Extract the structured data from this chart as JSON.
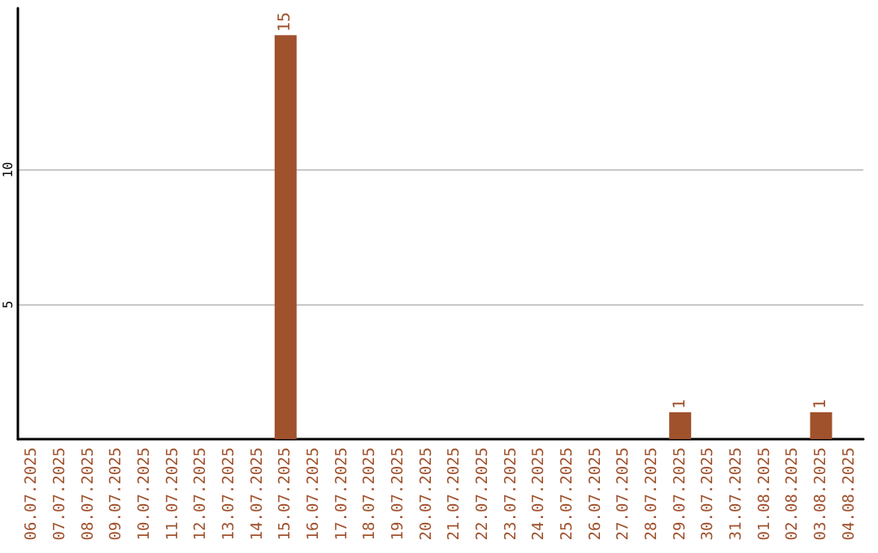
{
  "chart_data": {
    "type": "bar",
    "categories": [
      "06.07.2025",
      "07.07.2025",
      "08.07.2025",
      "09.07.2025",
      "10.07.2025",
      "11.07.2025",
      "12.07.2025",
      "13.07.2025",
      "14.07.2025",
      "15.07.2025",
      "16.07.2025",
      "17.07.2025",
      "18.07.2025",
      "19.07.2025",
      "20.07.2025",
      "21.07.2025",
      "22.07.2025",
      "23.07.2025",
      "24.07.2025",
      "25.07.2025",
      "26.07.2025",
      "27.07.2025",
      "28.07.2025",
      "29.07.2025",
      "30.07.2025",
      "31.07.2025",
      "01.08.2025",
      "02.08.2025",
      "03.08.2025",
      "04.08.2025"
    ],
    "values": [
      0,
      0,
      0,
      0,
      0,
      0,
      0,
      0,
      0,
      15,
      0,
      0,
      0,
      0,
      0,
      0,
      0,
      0,
      0,
      0,
      0,
      0,
      0,
      1,
      0,
      0,
      0,
      0,
      1,
      0
    ],
    "value_labels": [
      null,
      null,
      null,
      null,
      null,
      null,
      null,
      null,
      null,
      "15",
      null,
      null,
      null,
      null,
      null,
      null,
      null,
      null,
      null,
      null,
      null,
      null,
      null,
      "1",
      null,
      null,
      null,
      null,
      "1",
      null
    ],
    "color": "#a0522d",
    "ylim": [
      0,
      16
    ],
    "yticks": [
      5,
      10
    ],
    "grid": "y"
  }
}
